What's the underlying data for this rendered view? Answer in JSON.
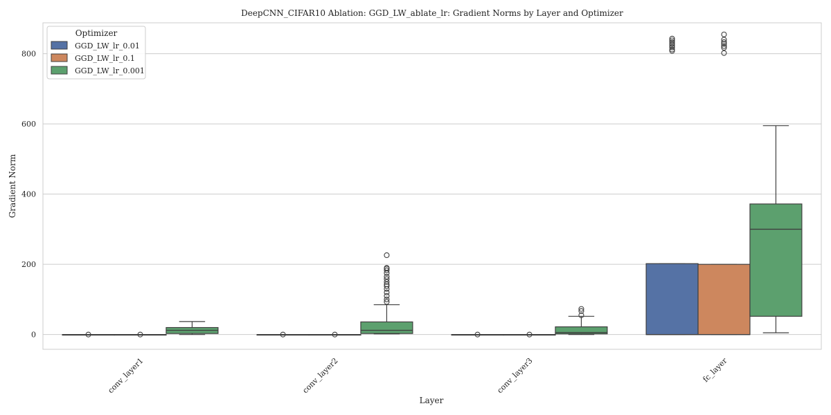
{
  "chart_data": {
    "type": "box",
    "title": "DeepCNN_CIFAR10 Ablation: GGD_LW_ablate_lr: Gradient Norms by Layer and Optimizer",
    "xlabel": "Layer",
    "ylabel": "Gradient Norm",
    "categories": [
      "conv_layer1",
      "conv_layer2",
      "conv_layer3",
      "fc_layer"
    ],
    "yticks": [
      0,
      200,
      400,
      600,
      800
    ],
    "ylim": [
      -42,
      888
    ],
    "grid": true,
    "legend": {
      "title": "Optimizer",
      "placement": "top-left"
    },
    "series": [
      {
        "name": "GGD_LW_lr_0.01",
        "color": "#5572a5",
        "boxes": [
          {
            "whisker_low": 0,
            "q1": 0,
            "median": 0,
            "q3": 0,
            "whisker_high": 0,
            "outliers": [
              0
            ]
          },
          {
            "whisker_low": 0,
            "q1": 0,
            "median": 0,
            "q3": 0,
            "whisker_high": 0,
            "outliers": [
              0
            ]
          },
          {
            "whisker_low": 0,
            "q1": 0,
            "median": 0,
            "q3": 0,
            "whisker_high": 0,
            "outliers": [
              0
            ]
          },
          {
            "whisker_low": 0,
            "q1": 0,
            "median": 0,
            "q3": 202,
            "whisker_high": 202,
            "outliers": [
              808,
              812,
              818,
              823,
              828,
              833,
              838,
              843
            ]
          }
        ]
      },
      {
        "name": "GGD_LW_lr_0.1",
        "color": "#cd875e",
        "boxes": [
          {
            "whisker_low": 0,
            "q1": 0,
            "median": 0,
            "q3": 0,
            "whisker_high": 0,
            "outliers": [
              0
            ]
          },
          {
            "whisker_low": 0,
            "q1": 0,
            "median": 0,
            "q3": 0,
            "whisker_high": 0,
            "outliers": [
              0
            ]
          },
          {
            "whisker_low": 0,
            "q1": 0,
            "median": 0,
            "q3": 0,
            "whisker_high": 0,
            "outliers": [
              0
            ]
          },
          {
            "whisker_low": 0,
            "q1": 0,
            "median": 0,
            "q3": 200,
            "whisker_high": 200,
            "outliers": [
              802,
              817,
              822,
              828,
              833,
              840,
              855
            ]
          }
        ]
      },
      {
        "name": "GGD_LW_lr_0.001",
        "color": "#5ca06e",
        "boxes": [
          {
            "whisker_low": 0,
            "q1": 3,
            "median": 12,
            "q3": 20,
            "whisker_high": 37,
            "outliers": []
          },
          {
            "whisker_low": 2,
            "q1": 3,
            "median": 12,
            "q3": 36,
            "whisker_high": 85,
            "outliers": [
              93,
              100,
              110,
              120,
              130,
              138,
              143,
              150,
              158,
              165,
              175,
              183,
              188,
              190,
              226
            ]
          },
          {
            "whisker_low": 0,
            "q1": 2,
            "median": 6,
            "q3": 22,
            "whisker_high": 52,
            "outliers": [
              55,
              67,
              73
            ]
          },
          {
            "whisker_low": 5,
            "q1": 52,
            "median": 300,
            "q3": 372,
            "whisker_high": 595,
            "outliers": []
          }
        ]
      }
    ]
  }
}
